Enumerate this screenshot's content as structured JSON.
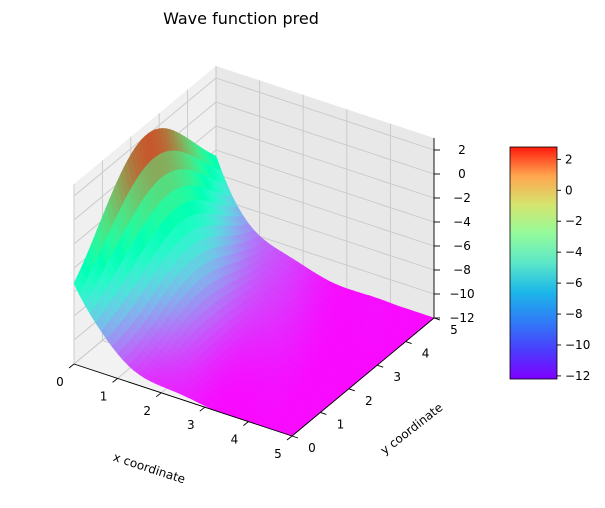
{
  "chart_data": {
    "type": "surface3d",
    "title": "Wave function pred",
    "xlabel": "x coordinate",
    "ylabel": "y coordinate",
    "zlabel": "",
    "xlim": [
      0,
      5
    ],
    "ylim": [
      0,
      5
    ],
    "zlim": [
      -12,
      3
    ],
    "x_ticks": [
      "0",
      "1",
      "2",
      "3",
      "4",
      "5"
    ],
    "y_ticks": [
      "0",
      "1",
      "2",
      "3",
      "4",
      "5"
    ],
    "z_ticks": [
      "2",
      "0",
      "−2",
      "−4",
      "−6",
      "−8",
      "−10",
      "−12"
    ],
    "colormap": "rainbow",
    "colorbar": {
      "ticks": [
        "2",
        "0",
        "−2",
        "−4",
        "−6",
        "−8",
        "−10",
        "−12"
      ],
      "range": [
        -12.2,
        2.8
      ]
    },
    "grid": true,
    "surface": {
      "description_points": [
        {
          "x": 0,
          "y": 0,
          "z": -9
        },
        {
          "x": 0,
          "y": 2.5,
          "z": 2.8
        },
        {
          "x": 0,
          "y": 5,
          "z": -2
        },
        {
          "x": 1.5,
          "y": 2.5,
          "z": -6
        },
        {
          "x": 3,
          "y": 2.5,
          "z": -11
        },
        {
          "x": 5,
          "y": 0,
          "z": -12
        },
        {
          "x": 5,
          "y": 5,
          "z": -12
        }
      ]
    }
  }
}
